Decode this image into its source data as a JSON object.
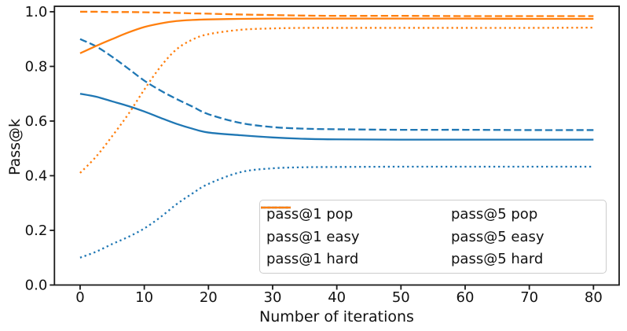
{
  "colors": {
    "blue": "#1f77b4",
    "orange": "#ff7f0e",
    "axis": "#1a1a1a",
    "legend_border": "#cccccc",
    "text": "#111111"
  },
  "chart_data": {
    "type": "line",
    "title": "",
    "xlabel": "Number of iterations",
    "ylabel": "Pass@k",
    "xlim": [
      -4,
      84
    ],
    "ylim": [
      0,
      1.02
    ],
    "xticks": [
      0,
      10,
      20,
      30,
      40,
      50,
      60,
      70,
      80
    ],
    "ytick_values": [
      0.0,
      0.2,
      0.4,
      0.6,
      0.8,
      1.0
    ],
    "ytick_labels": [
      "0.0",
      "0.2",
      "0.4",
      "0.6",
      "0.8",
      "1.0"
    ],
    "grid": false,
    "legend_position": "lower right, 2 columns",
    "x": [
      0,
      2.5,
      5,
      7.5,
      10,
      12.5,
      15,
      17.5,
      20,
      25,
      30,
      35,
      40,
      50,
      60,
      70,
      80
    ],
    "series": [
      {
        "name": "pass@1 pop",
        "color": "#1f77b4",
        "style": "solid",
        "values": [
          0.7,
          0.689,
          0.672,
          0.655,
          0.635,
          0.612,
          0.59,
          0.572,
          0.558,
          0.548,
          0.54,
          0.535,
          0.533,
          0.532,
          0.532,
          0.532,
          0.532
        ]
      },
      {
        "name": "pass@1 easy",
        "color": "#1f77b4",
        "style": "dashed",
        "values": [
          0.9,
          0.873,
          0.835,
          0.792,
          0.748,
          0.712,
          0.681,
          0.653,
          0.625,
          0.593,
          0.578,
          0.572,
          0.57,
          0.568,
          0.568,
          0.567,
          0.567
        ]
      },
      {
        "name": "pass@1 hard",
        "color": "#1f77b4",
        "style": "dotted",
        "values": [
          0.1,
          0.122,
          0.15,
          0.176,
          0.207,
          0.248,
          0.295,
          0.335,
          0.37,
          0.413,
          0.427,
          0.431,
          0.432,
          0.433,
          0.433,
          0.433,
          0.433
        ]
      },
      {
        "name": "pass@5 pop",
        "color": "#ff7f0e",
        "style": "solid",
        "values": [
          0.848,
          0.875,
          0.9,
          0.924,
          0.944,
          0.957,
          0.966,
          0.97,
          0.972,
          0.974,
          0.975,
          0.975,
          0.975,
          0.975,
          0.975,
          0.974,
          0.974
        ]
      },
      {
        "name": "pass@5 easy",
        "color": "#ff7f0e",
        "style": "dashed",
        "values": [
          1.0,
          1.0,
          0.999,
          0.999,
          0.998,
          0.997,
          0.996,
          0.994,
          0.993,
          0.99,
          0.988,
          0.986,
          0.985,
          0.985,
          0.984,
          0.984,
          0.984
        ]
      },
      {
        "name": "pass@5 hard",
        "color": "#ff7f0e",
        "style": "dotted",
        "values": [
          0.41,
          0.47,
          0.545,
          0.625,
          0.715,
          0.798,
          0.862,
          0.898,
          0.918,
          0.934,
          0.939,
          0.941,
          0.941,
          0.941,
          0.941,
          0.941,
          0.942
        ]
      }
    ]
  }
}
